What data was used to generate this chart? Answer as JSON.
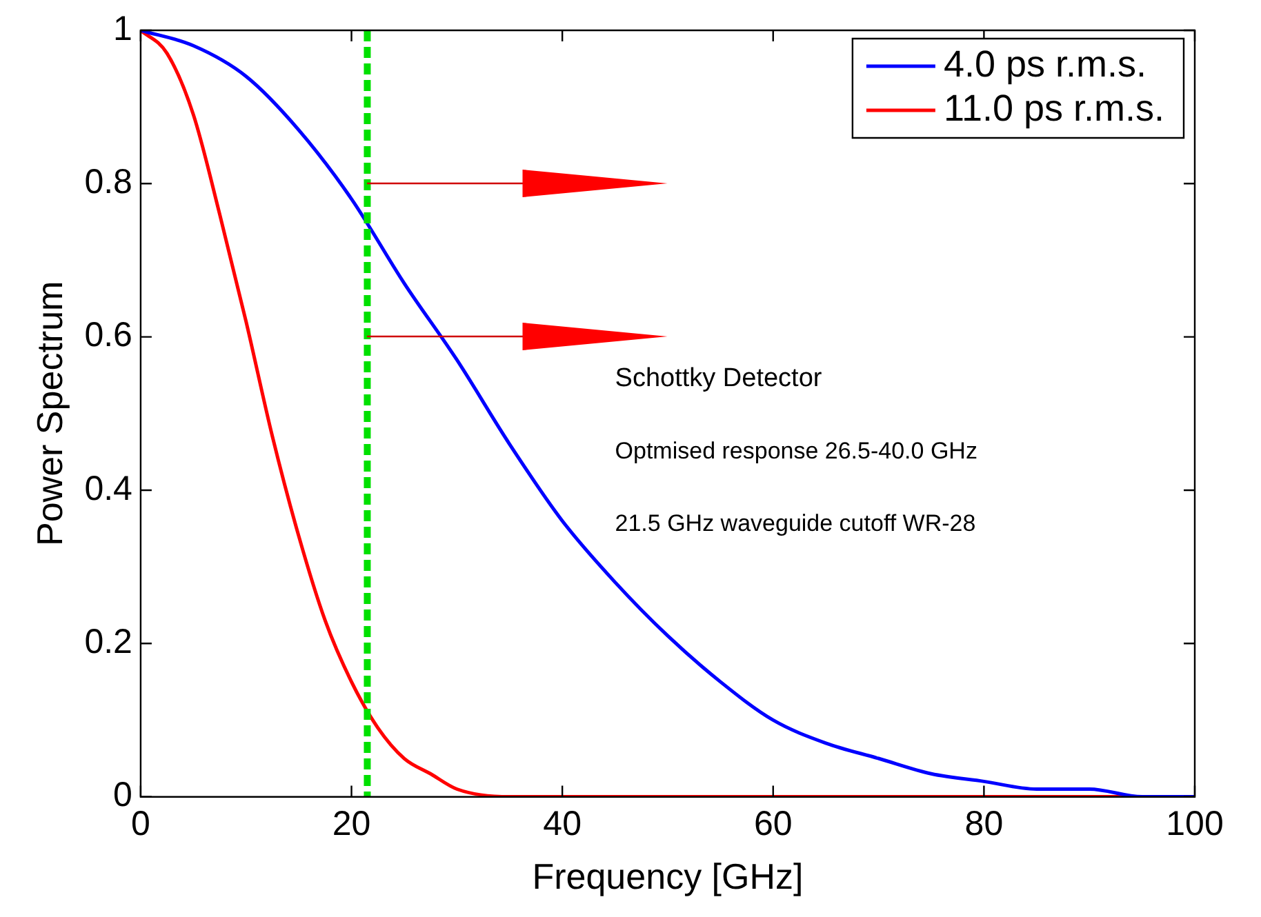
{
  "chart_data": {
    "type": "line",
    "xlabel": "Frequency [GHz]",
    "ylabel": "Power Spectrum",
    "xlim": [
      0,
      100
    ],
    "xticks": [
      0,
      20,
      40,
      60,
      80,
      100
    ],
    "ylim": [
      0,
      1
    ],
    "yticks": [
      0,
      0.2,
      0.4,
      0.6,
      0.8,
      1
    ],
    "grid": false,
    "legend": "top right",
    "marker": "none",
    "line_style": "solid",
    "series": [
      {
        "name": "4.0 ps r.m.s.",
        "color": "#0000ff",
        "x": [
          0,
          5,
          10,
          15,
          20,
          25,
          30,
          35,
          40,
          45,
          50,
          55,
          60,
          65,
          70,
          75,
          80,
          85,
          90,
          95,
          100
        ],
        "values": [
          1,
          0.98,
          0.94,
          0.87,
          0.78,
          0.67,
          0.57,
          0.46,
          0.36,
          0.28,
          0.21,
          0.15,
          0.1,
          0.07,
          0.05,
          0.03,
          0.02,
          0.01,
          0.01,
          0,
          0
        ]
      },
      {
        "name": "11.0 ps r.m.s.",
        "color": "#ff0000",
        "x": [
          0,
          2.5,
          5,
          7.5,
          10,
          12.5,
          15,
          17.5,
          20,
          22.5,
          25,
          27.5,
          30,
          35,
          40,
          50,
          60,
          70,
          80,
          90,
          100
        ],
        "values": [
          1,
          0.97,
          0.89,
          0.76,
          0.62,
          0.47,
          0.34,
          0.23,
          0.15,
          0.09,
          0.05,
          0.03,
          0.01,
          0,
          0,
          0,
          0,
          0,
          0,
          0,
          0
        ]
      }
    ],
    "ref_lines": [
      {
        "axis": "x",
        "value": 21.5,
        "color": "#00e000",
        "line_style": "dashed"
      }
    ],
    "annotations": [
      "Schottky Detector",
      "Optmised response 26.5-40.0 GHz",
      "21.5 GHz waveguide cutoff WR-28"
    ]
  }
}
